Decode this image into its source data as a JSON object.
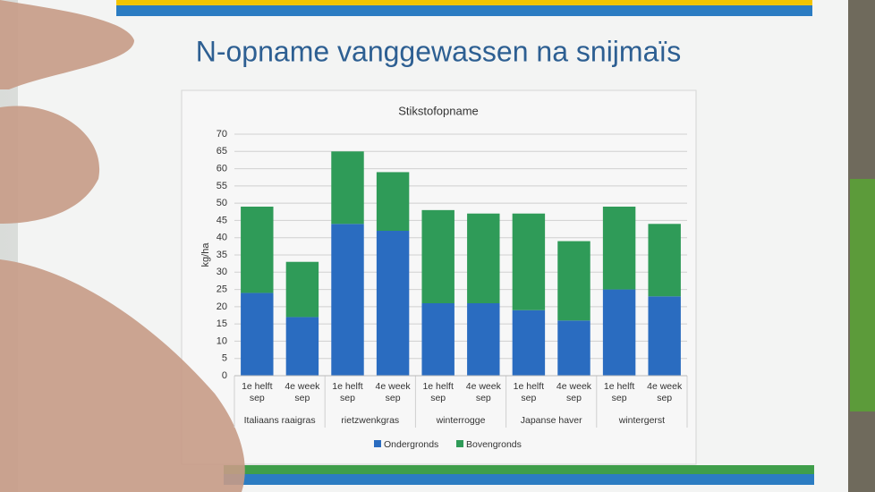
{
  "header": {
    "title": "N-opname vanggewassen na snijmaïs"
  },
  "chart_data": {
    "type": "stacked-bar",
    "title": "Stikstofopname",
    "y_label": "kg/ha",
    "categories": [
      "1e helft sep",
      "4e week sep",
      "1e helft sep",
      "4e week sep",
      "1e helft sep",
      "4e week sep",
      "1e helft sep",
      "4e week sep",
      "1e helft sep",
      "4e week sep"
    ],
    "groups": [
      "Italiaans raaigras",
      "rietzwenkgras",
      "winterrogge",
      "Japanse haver",
      "wintergerst"
    ],
    "series": [
      {
        "name": "Ondergronds",
        "color": "#2a6cc0",
        "values": [
          24,
          17,
          44,
          42,
          21,
          21,
          19,
          16,
          25,
          23
        ]
      },
      {
        "name": "Bovengronds",
        "color": "#2f9b58",
        "values": [
          25,
          16,
          21,
          17,
          27,
          26,
          28,
          23,
          24,
          21
        ]
      }
    ],
    "ylim": [
      0,
      70
    ],
    "yticks": [
      0,
      5,
      10,
      15,
      20,
      25,
      30,
      35,
      40,
      45,
      50,
      55,
      60,
      65,
      70
    ],
    "grid": true,
    "legend": "bottom"
  }
}
